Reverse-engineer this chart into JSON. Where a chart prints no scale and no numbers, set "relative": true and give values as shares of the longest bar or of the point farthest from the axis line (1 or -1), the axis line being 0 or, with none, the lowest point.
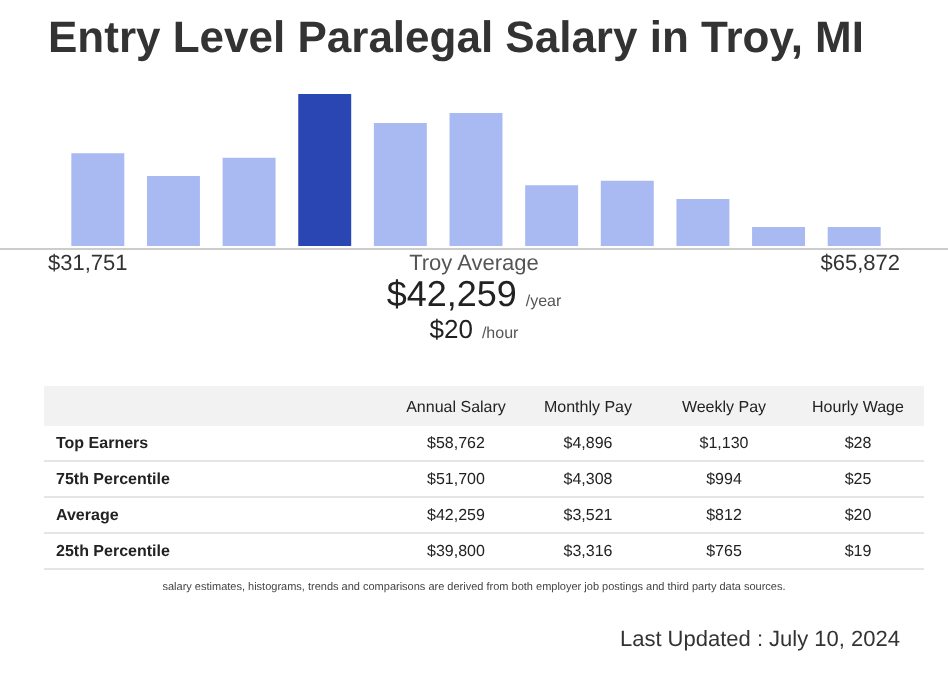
{
  "chart_data": [
    {
      "type": "bar",
      "title": "Entry Level Paralegal Salary in Troy, MI",
      "relative": true,
      "categories": [
        null,
        null,
        null,
        null,
        null,
        null,
        null,
        null,
        null,
        null,
        null
      ],
      "values": [
        0.61,
        0.46,
        0.58,
        1,
        0.81,
        0.875,
        0.4,
        0.43,
        0.31,
        0.125,
        0.125
      ],
      "colors": [
        "#a9b9f2",
        "#a9b9f2",
        "#a9b9f2",
        "#2a46b3",
        "#a9b9f2",
        "#a9b9f2",
        "#a9b9f2",
        "#a9b9f2",
        "#a9b9f2",
        "#a9b9f2",
        "#a9b9f2"
      ],
      "annotations": [
        "$31,751",
        "Troy Average",
        "$65,872",
        "$42,259",
        "/year",
        "$20",
        "/hour"
      ]
    },
    {
      "type": "other",
      "categories": [
        null,
        "Annual Salary",
        "Monthly Pay",
        "Weekly Pay",
        "Hourly Wage"
      ],
      "y_categories": [
        "Top Earners",
        "75th Percentile",
        "Average",
        "25th Percentile"
      ],
      "cell_labels": [
        [
          "$58,762",
          "$4,896",
          "$1,130",
          "$28"
        ],
        [
          "$51,700",
          "$4,308",
          "$994",
          "$25"
        ],
        [
          "$42,259",
          "$3,521",
          "$812",
          "$20"
        ],
        [
          "$39,800",
          "$3,316",
          "$765",
          "$19"
        ]
      ],
      "annotations": [
        "salary estimates, histograms, trends and comparisons are derived from both employer job postings and third party data sources.",
        "Last Updated : July 10, 2024"
      ]
    }
  ]
}
